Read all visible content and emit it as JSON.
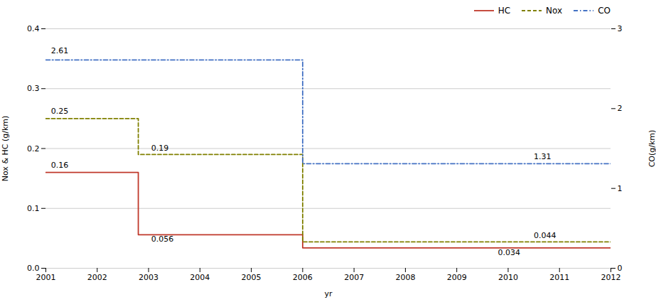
{
  "chart_data": {
    "type": "line",
    "xlabel": "yr",
    "ylabel": "Nox & HC (g/km)",
    "y2label": "CO(g/km)",
    "xlim": [
      2001,
      2012
    ],
    "xticks": [
      2001,
      2002,
      2003,
      2004,
      2005,
      2006,
      2007,
      2008,
      2009,
      2010,
      2011,
      2012
    ],
    "ylim": [
      0,
      0.4
    ],
    "yticks": [
      {
        "value": 0,
        "label": "0.0"
      },
      0.1,
      0.2,
      0.3,
      0.4
    ],
    "y2lim": [
      0,
      3
    ],
    "y2ticks": [
      0,
      1,
      2,
      3
    ],
    "grid": true,
    "legend": "top-right",
    "series": [
      {
        "name": "HC",
        "color": "#c0392b",
        "line_style": "solid",
        "x": [
          2001,
          2002.8,
          2002.8,
          2006.0,
          2006.0,
          2012
        ],
        "values": [
          0.16,
          0.16,
          0.056,
          0.056,
          0.034,
          0.034
        ]
      },
      {
        "name": "Nox",
        "color": "#808000",
        "line_style": "dashed",
        "x": [
          2001,
          2002.8,
          2002.8,
          2006.0,
          2006.0,
          2012
        ],
        "values": [
          0.25,
          0.25,
          0.19,
          0.19,
          0.044,
          0.044
        ]
      },
      {
        "name": "CO",
        "color": "#4472c4",
        "line_style": "dashdot",
        "axis": "y2",
        "x": [
          2001,
          2006.0,
          2006.0,
          2012
        ],
        "values": [
          2.61,
          2.61,
          1.31,
          1.31
        ]
      }
    ],
    "annotations": [
      {
        "x": 2001.1,
        "y": 0.168,
        "text": "0.16"
      },
      {
        "x": 2003.05,
        "y": 0.044,
        "text": "0.056"
      },
      {
        "x": 2009.8,
        "y": 0.022,
        "text": "0.034"
      },
      {
        "x": 2001.1,
        "y": 0.258,
        "text": "0.25"
      },
      {
        "x": 2003.05,
        "y": 0.196,
        "text": "0.19"
      },
      {
        "x": 2010.5,
        "y": 0.05,
        "text": "0.044"
      },
      {
        "x": 2001.1,
        "y": 2.69,
        "text": "2.61",
        "axis": "y2"
      },
      {
        "x": 2010.5,
        "y": 1.37,
        "text": "1.31",
        "axis": "y2"
      }
    ]
  }
}
